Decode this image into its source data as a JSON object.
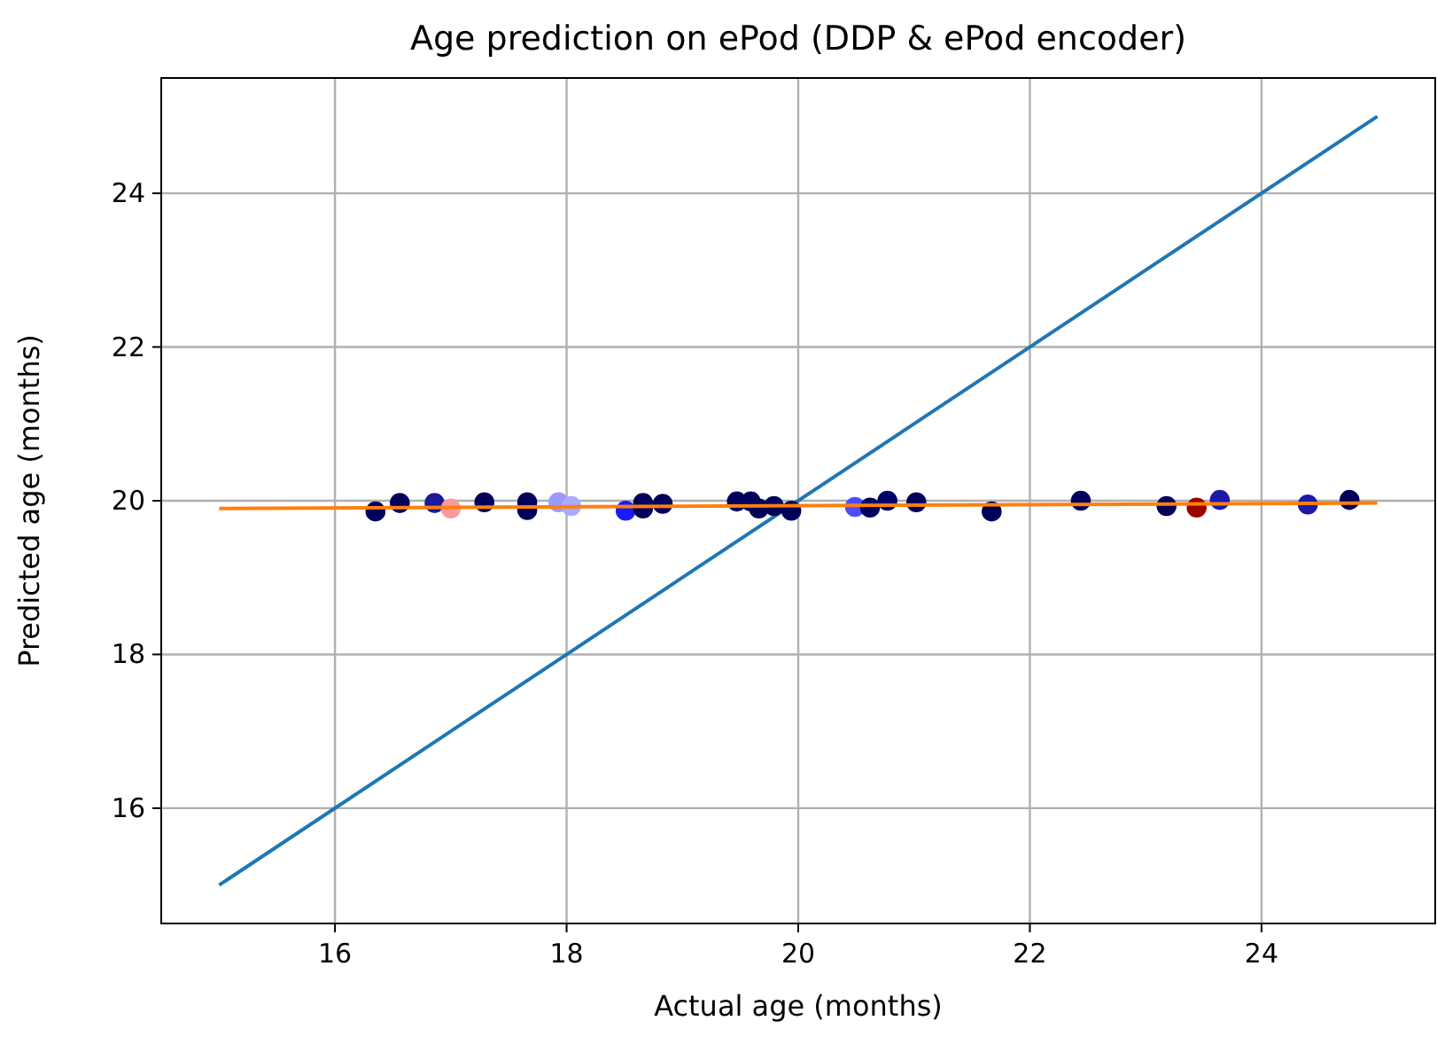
{
  "chart_data": {
    "type": "scatter",
    "title": "Age prediction on ePod (DDP & ePod encoder)",
    "xlabel": "Actual age (months)",
    "ylabel": "Predicted age (months)",
    "xlim": [
      14.5,
      25.5
    ],
    "ylim": [
      14.5,
      25.5
    ],
    "xticks": [
      16,
      18,
      20,
      22,
      24
    ],
    "yticks": [
      16,
      18,
      20,
      22,
      24
    ],
    "grid": true,
    "series": [
      {
        "type": "line",
        "color": "#1f77b4",
        "x": [
          15,
          25
        ],
        "values": [
          15,
          25
        ]
      },
      {
        "marker": "circle",
        "x": [
          16.35,
          16.56,
          16.86,
          17.0,
          17.29,
          17.66,
          17.66,
          17.93,
          18.04,
          18.51,
          18.66,
          18.66,
          18.83,
          19.47,
          19.59,
          19.66,
          19.79,
          19.94,
          20.49,
          20.62,
          20.77,
          21.02,
          21.67,
          22.44,
          23.18,
          23.44,
          23.64,
          24.4,
          24.76
        ],
        "values": [
          19.86,
          19.97,
          19.97,
          19.9,
          19.98,
          19.98,
          19.88,
          19.98,
          19.93,
          19.87,
          19.9,
          19.97,
          19.96,
          19.99,
          19.99,
          19.9,
          19.93,
          19.87,
          19.92,
          19.91,
          20.0,
          19.98,
          19.86,
          20.0,
          19.93,
          19.91,
          20.01,
          19.95,
          20.01
        ],
        "colors": [
          "#00005a",
          "#00005a",
          "#1a1a9a",
          "#ff9999",
          "#00005a",
          "#00005a",
          "#00005a",
          "#9999ff",
          "#aaaaff",
          "#1a1aff",
          "#00005a",
          "#00005a",
          "#00005a",
          "#00005a",
          "#00005a",
          "#00005a",
          "#00005a",
          "#00005a",
          "#4d4dff",
          "#00005a",
          "#00006a",
          "#00005a",
          "#00005a",
          "#00005a",
          "#00005a",
          "#990000",
          "#1a1aaa",
          "#1a1aaa",
          "#00005a"
        ]
      },
      {
        "type": "line",
        "color": "#ff7f0e",
        "x": [
          15,
          25
        ],
        "values": [
          19.9,
          19.97
        ]
      }
    ]
  }
}
